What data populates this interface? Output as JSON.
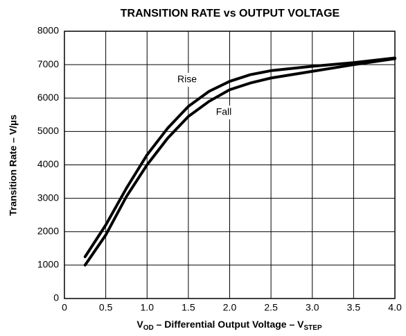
{
  "chart_data": {
    "type": "line",
    "title": "TRANSITION RATE vs OUTPUT VOLTAGE",
    "xlabel": [
      "V",
      "OD",
      " – Differential Output Voltage – V",
      "STEP"
    ],
    "ylabel": "Transition Rate – V/µs",
    "x": [
      0.25,
      0.5,
      0.75,
      1.0,
      1.25,
      1.5,
      1.75,
      2.0,
      2.25,
      2.5,
      3.0,
      3.5,
      4.0
    ],
    "series": [
      {
        "name": "Rise",
        "color": "#000000",
        "values": [
          1250,
          2200,
          3300,
          4300,
          5100,
          5750,
          6200,
          6500,
          6700,
          6820,
          6950,
          7060,
          7200
        ]
      },
      {
        "name": "Fall",
        "color": "#000000",
        "values": [
          1000,
          1900,
          3050,
          4000,
          4800,
          5450,
          5900,
          6250,
          6450,
          6600,
          6800,
          7000,
          7180
        ]
      }
    ],
    "xlim": [
      0,
      4.0
    ],
    "xticks": [
      0,
      0.5,
      {
        "value": 1.0,
        "label": "1.0"
      },
      1.5,
      {
        "value": 2.0,
        "label": "2.0"
      },
      2.5,
      {
        "value": 3.0,
        "label": "3.0"
      },
      3.5,
      {
        "value": 4.0,
        "label": "4.0"
      }
    ],
    "ylim": [
      0,
      8000
    ],
    "yticks": [
      0,
      1000,
      2000,
      3000,
      4000,
      5000,
      6000,
      7000,
      8000
    ],
    "grid": true
  }
}
